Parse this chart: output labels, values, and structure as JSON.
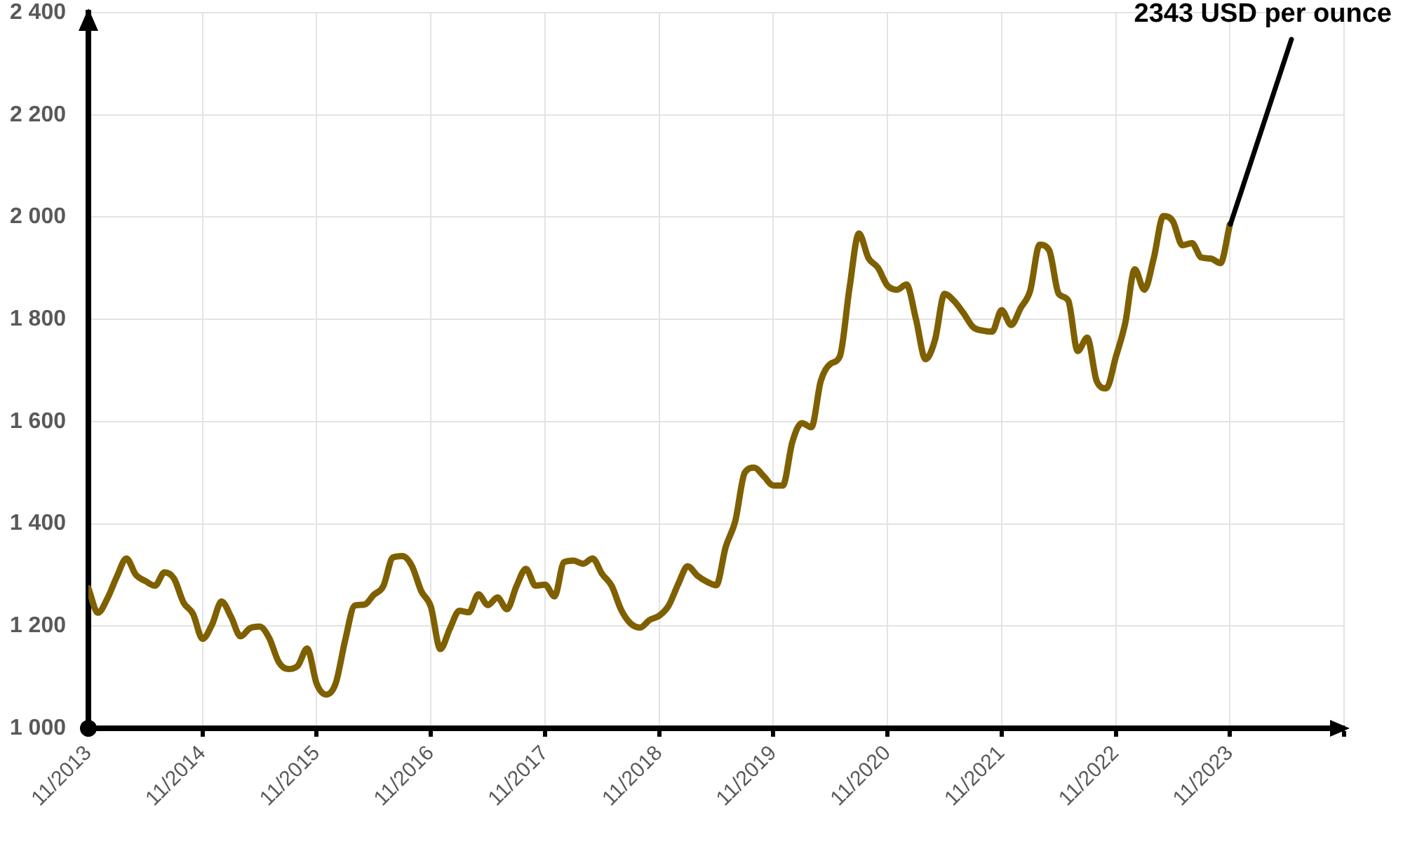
{
  "chart_data": {
    "type": "line",
    "color": "#7f6000",
    "x": [
      "2013-11",
      "2013-12",
      "2014-01",
      "2014-02",
      "2014-03",
      "2014-04",
      "2014-05",
      "2014-06",
      "2014-07",
      "2014-08",
      "2014-09",
      "2014-10",
      "2014-11",
      "2014-12",
      "2015-01",
      "2015-02",
      "2015-03",
      "2015-04",
      "2015-05",
      "2015-06",
      "2015-07",
      "2015-08",
      "2015-09",
      "2015-10",
      "2015-11",
      "2015-12",
      "2016-01",
      "2016-02",
      "2016-03",
      "2016-04",
      "2016-05",
      "2016-06",
      "2016-07",
      "2016-08",
      "2016-09",
      "2016-10",
      "2016-11",
      "2016-12",
      "2017-01",
      "2017-02",
      "2017-03",
      "2017-04",
      "2017-05",
      "2017-06",
      "2017-07",
      "2017-08",
      "2017-09",
      "2017-10",
      "2017-11",
      "2017-12",
      "2018-01",
      "2018-02",
      "2018-03",
      "2018-04",
      "2018-05",
      "2018-06",
      "2018-07",
      "2018-08",
      "2018-09",
      "2018-10",
      "2018-11",
      "2018-12",
      "2019-01",
      "2019-02",
      "2019-03",
      "2019-04",
      "2019-05",
      "2019-06",
      "2019-07",
      "2019-08",
      "2019-09",
      "2019-10",
      "2019-11",
      "2019-12",
      "2020-01",
      "2020-02",
      "2020-03",
      "2020-04",
      "2020-05",
      "2020-06",
      "2020-07",
      "2020-08",
      "2020-09",
      "2020-10",
      "2020-11",
      "2020-12",
      "2021-01",
      "2021-02",
      "2021-03",
      "2021-04",
      "2021-05",
      "2021-06",
      "2021-07",
      "2021-08",
      "2021-09",
      "2021-10",
      "2021-11",
      "2021-12",
      "2022-01",
      "2022-02",
      "2022-03",
      "2022-04",
      "2022-05",
      "2022-06",
      "2022-07",
      "2022-08",
      "2022-09",
      "2022-10",
      "2022-11",
      "2022-12",
      "2023-01",
      "2023-02",
      "2023-03",
      "2023-04",
      "2023-05",
      "2023-06",
      "2023-07",
      "2023-08",
      "2023-09",
      "2023-10",
      "2023-11"
    ],
    "values": [
      1274,
      1226,
      1254,
      1297,
      1332,
      1300,
      1288,
      1279,
      1305,
      1293,
      1246,
      1224,
      1175,
      1203,
      1248,
      1218,
      1180,
      1196,
      1199,
      1177,
      1130,
      1116,
      1122,
      1156,
      1087,
      1066,
      1088,
      1173,
      1240,
      1242,
      1261,
      1278,
      1334,
      1337,
      1318,
      1268,
      1238,
      1155,
      1195,
      1230,
      1227,
      1262,
      1241,
      1256,
      1233,
      1278,
      1312,
      1279,
      1281,
      1258,
      1325,
      1328,
      1322,
      1332,
      1302,
      1279,
      1232,
      1205,
      1197,
      1212,
      1220,
      1240,
      1282,
      1317,
      1299,
      1287,
      1280,
      1355,
      1405,
      1500,
      1510,
      1493,
      1475,
      1475,
      1560,
      1597,
      1589,
      1680,
      1713,
      1728,
      1860,
      1968,
      1920,
      1901,
      1866,
      1858,
      1868,
      1800,
      1722,
      1760,
      1850,
      1836,
      1812,
      1785,
      1778,
      1776,
      1818,
      1789,
      1822,
      1856,
      1946,
      1935,
      1850,
      1837,
      1738,
      1764,
      1679,
      1665,
      1726,
      1793,
      1898,
      1858,
      1920,
      2002,
      1992,
      1945,
      1949,
      1921,
      1919,
      1910,
      1986
    ],
    "xlim": [
      "2013-11",
      "2024-11"
    ],
    "xticks": [
      {
        "value": "2013-11",
        "label": "11/2013"
      },
      {
        "value": "2014-11",
        "label": "11/2014"
      },
      {
        "value": "2015-11",
        "label": "11/2015"
      },
      {
        "value": "2016-11",
        "label": "11/2016"
      },
      {
        "value": "2017-11",
        "label": "11/2017"
      },
      {
        "value": "2018-11",
        "label": "11/2018"
      },
      {
        "value": "2019-11",
        "label": "11/2019"
      },
      {
        "value": "2020-11",
        "label": "11/2020"
      },
      {
        "value": "2021-11",
        "label": "11/2021"
      },
      {
        "value": "2022-11",
        "label": "11/2022"
      },
      {
        "value": "2023-11",
        "label": "11/2023"
      },
      {
        "value": "2024-11",
        "label": null
      }
    ],
    "ylim": [
      1000,
      2400
    ],
    "yticks": [
      {
        "value": 1000,
        "label": "1 000"
      },
      {
        "value": 1200,
        "label": "1 200"
      },
      {
        "value": 1400,
        "label": "1 400"
      },
      {
        "value": 1600,
        "label": "1 600"
      },
      {
        "value": 1800,
        "label": "1 800"
      },
      {
        "value": 2000,
        "label": "2 000"
      },
      {
        "value": 2200,
        "label": "2 200"
      },
      {
        "value": 2400,
        "label": "2 400"
      }
    ],
    "grid": true,
    "legend": false,
    "annotations": [
      {
        "text": "2343 USD per ounce",
        "x": "2023-11",
        "y": 1986
      }
    ]
  }
}
